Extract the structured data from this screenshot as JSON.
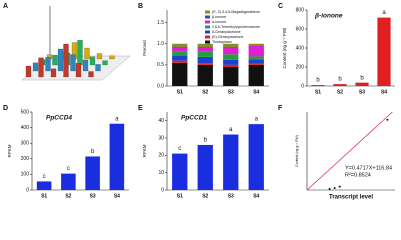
{
  "chart_data": [
    {
      "type": "bar3d",
      "panel": "A",
      "zlim": [
        0,
        100
      ],
      "series": [
        {
          "color": "#c0392b",
          "values": [
            20,
            35,
            15,
            60,
            25,
            10
          ]
        },
        {
          "color": "#2e86c1",
          "values": [
            15,
            25,
            40,
            30,
            20,
            12
          ]
        },
        {
          "color": "#27ae60",
          "values": [
            10,
            18,
            22,
            45,
            15,
            8
          ]
        },
        {
          "color": "#d4ac0d",
          "values": [
            8,
            12,
            30,
            20,
            10,
            6
          ]
        }
      ]
    },
    {
      "type": "stacked_bar",
      "panel": "B",
      "ylabel": "Percent",
      "categories": [
        "S1",
        "S2",
        "S3",
        "S4"
      ],
      "ylim": [
        0,
        1.8
      ],
      "yticks": [
        {
          "value": 0,
          "label": "0.0"
        },
        {
          "value": 0.5,
          "label": "0.5"
        },
        {
          "value": 1,
          "label": "1.0"
        },
        {
          "value": 1.5,
          "label": "1.5"
        }
      ],
      "series": [
        {
          "name": "Theaspirane",
          "color": "#111111",
          "values": [
            0.55,
            0.5,
            0.45,
            0.5
          ]
        },
        {
          "name": "(E)-Geranylacetone",
          "color": "#e02020",
          "values": [
            0.05,
            0.04,
            0.05,
            0.03
          ]
        },
        {
          "name": "6-Geranylacetone",
          "color": "#2040d0",
          "values": [
            0.12,
            0.15,
            0.12,
            0.1
          ]
        },
        {
          "name": "2,6,6-Trimethylcyclohexanone",
          "color": "#20a040",
          "values": [
            0.1,
            0.12,
            0.13,
            0.07
          ]
        },
        {
          "name": "α-ionone",
          "color": "#e020d0",
          "values": [
            0.08,
            0.09,
            0.15,
            0.25
          ]
        },
        {
          "name": "β-ionone",
          "color": "#4040c0",
          "values": [
            0.02,
            0.02,
            0.02,
            0.01
          ]
        },
        {
          "name": "(E, Z)-3,4,5-Megastigmatriene",
          "color": "#8a8a30",
          "values": [
            0.08,
            0.08,
            0.08,
            0.04
          ]
        }
      ]
    },
    {
      "type": "bar",
      "panel": "C",
      "title": "β-ionone",
      "ylabel": "Content (ng g⁻¹ FW)",
      "categories": [
        "S1",
        "S2",
        "S3",
        "S4"
      ],
      "values": [
        10,
        20,
        35,
        720
      ],
      "letters": [
        "b",
        "b",
        "b",
        "a"
      ],
      "color": "#e02020",
      "ylim": [
        0,
        800
      ],
      "yticks": [
        0,
        200,
        400,
        600,
        800
      ]
    },
    {
      "type": "bar",
      "panel": "D",
      "title": "PpCCD4",
      "ylabel": "RPKM",
      "categories": [
        "S1",
        "S2",
        "S3",
        "S4"
      ],
      "values": [
        55,
        105,
        215,
        425
      ],
      "letters": [
        "c",
        "c",
        "b",
        "a"
      ],
      "color": "#1a2ee0",
      "ylim": [
        0,
        500
      ],
      "yticks": [
        0,
        100,
        200,
        300,
        400,
        500
      ]
    },
    {
      "type": "bar",
      "panel": "E",
      "title": "PpCCD1",
      "ylabel": "RPKM",
      "categories": [
        "S1",
        "S2",
        "S3",
        "S4"
      ],
      "values": [
        21,
        26,
        32,
        38
      ],
      "letters": [
        "c",
        "b",
        "a",
        "a"
      ],
      "color": "#1a2ee0",
      "ylim": [
        0,
        45
      ],
      "yticks": [
        0,
        10,
        20,
        30,
        40
      ]
    },
    {
      "type": "scatter",
      "panel": "F",
      "ylabel": "Content (ng g⁻¹ FW)",
      "xlabel": "Transcript level",
      "x": [
        200,
        300,
        400,
        1350
      ],
      "y": [
        10,
        20,
        35,
        720
      ],
      "xlim": [
        -250,
        1500
      ],
      "ylim": [
        0,
        800
      ],
      "fit": {
        "slope": 0.4717,
        "intercept": 116.84
      },
      "equation": "Y=0.4717X+116.84",
      "r2": "R²=0.8524",
      "color": "#111111",
      "line_color": "#d02060"
    }
  ]
}
